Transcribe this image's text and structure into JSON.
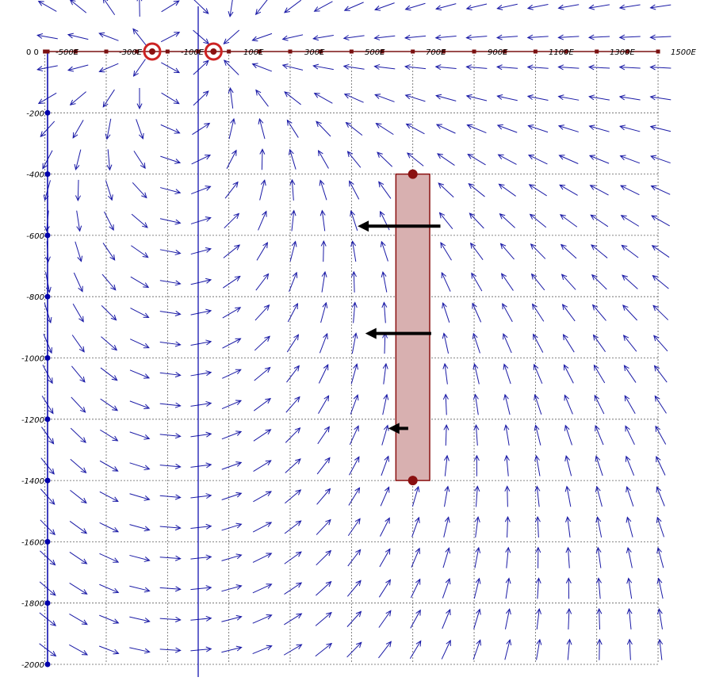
{
  "diagram": {
    "x_tick_labels": [
      "-500E",
      "-300E",
      "-100E",
      "100E",
      "300E",
      "500E",
      "700E",
      "900E",
      "1100E",
      "1300E",
      "1500E"
    ],
    "y_tick_labels": [
      "-200",
      "-400",
      "-600",
      "-800",
      "-1000",
      "-1200",
      "-1400",
      "-1600",
      "-1800",
      "-2000"
    ],
    "origin_label": "0 0",
    "colors": {
      "field_arrow": "#1a1aa6",
      "axis": "#0000aa",
      "ground_line": "#7a1010",
      "grid": "#606060",
      "electrode": "#cc2222",
      "body_fill": "#d8b0b0",
      "body_stroke": "#8a1010",
      "force_arrow": "#000000"
    },
    "icons": {
      "source_electrode": "electrode-ring-icon",
      "force_arrow": "force-arrow-icon"
    },
    "field_model": {
      "electrodes_E": [
        -150,
        50
      ],
      "note_only_for_rendering": false
    },
    "body": {
      "x_range_E": [
        650,
        750
      ],
      "depth_range": [
        -400,
        -1400
      ]
    },
    "force_arrows": [
      {
        "depth": -570,
        "tip_E": 520,
        "tail_E": 790
      },
      {
        "depth": -920,
        "tip_E": 545,
        "tail_E": 760
      },
      {
        "depth": -1230,
        "tip_E": 620,
        "tail_E": 685
      }
    ]
  }
}
